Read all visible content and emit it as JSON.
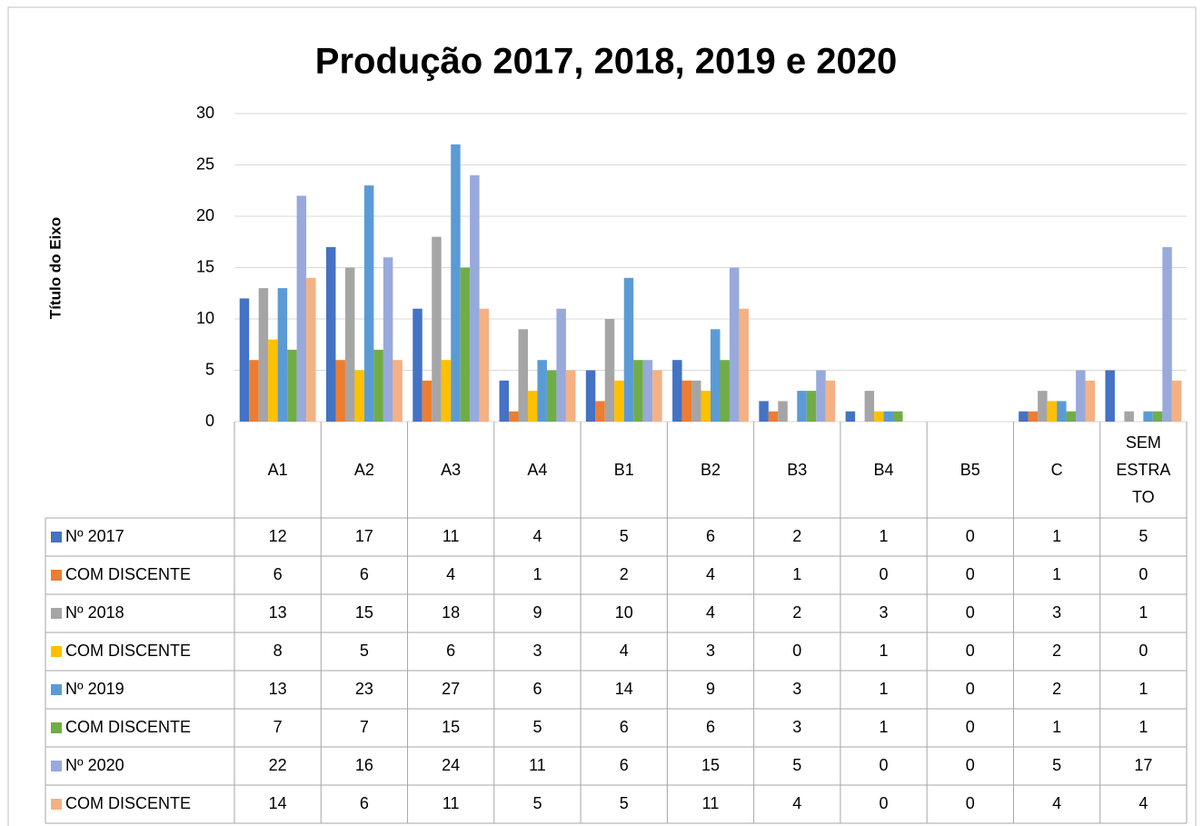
{
  "chart_data": {
    "type": "bar",
    "title": "Produção 2017, 2018, 2019 e 2020",
    "y_label": "Título do Eixo",
    "categories": [
      "A1",
      "A2",
      "A3",
      "A4",
      "B1",
      "B2",
      "B3",
      "B4",
      "B5",
      "C",
      "SEM ESTRATO"
    ],
    "series": [
      {
        "name": "Nº 2017",
        "color": "#4472c4",
        "values": [
          12,
          17,
          11,
          4,
          5,
          6,
          2,
          1,
          0,
          1,
          5
        ]
      },
      {
        "name": "COM DISCENTE",
        "color": "#ed7d31",
        "values": [
          6,
          6,
          4,
          1,
          2,
          4,
          1,
          0,
          0,
          1,
          0
        ]
      },
      {
        "name": "Nº 2018",
        "color": "#a5a5a5",
        "values": [
          13,
          15,
          18,
          9,
          10,
          4,
          2,
          3,
          0,
          3,
          1
        ]
      },
      {
        "name": "COM DISCENTE",
        "color": "#ffc000",
        "values": [
          8,
          5,
          6,
          3,
          4,
          3,
          0,
          1,
          0,
          2,
          0
        ]
      },
      {
        "name": "Nº 2019",
        "color": "#5b9bd5",
        "values": [
          13,
          23,
          27,
          6,
          14,
          9,
          3,
          1,
          0,
          2,
          1
        ]
      },
      {
        "name": "COM DISCENTE",
        "color": "#70ad47",
        "values": [
          7,
          7,
          15,
          5,
          6,
          6,
          3,
          1,
          0,
          1,
          1
        ]
      },
      {
        "name": "Nº 2020",
        "color": "#98a9dc",
        "values": [
          22,
          16,
          24,
          11,
          6,
          15,
          5,
          0,
          0,
          5,
          17
        ]
      },
      {
        "name": "COM DISCENTE",
        "color": "#f4b183",
        "values": [
          14,
          6,
          11,
          5,
          5,
          11,
          4,
          0,
          0,
          4,
          4
        ]
      }
    ],
    "ylim": [
      0,
      30
    ],
    "yticks": [
      0,
      5,
      10,
      15,
      20,
      25,
      30
    ],
    "grid": true
  }
}
